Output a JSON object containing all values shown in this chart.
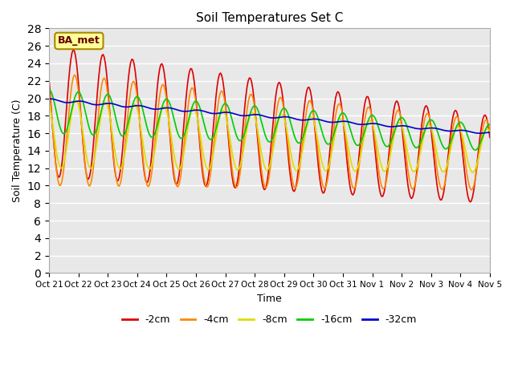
{
  "title": "Soil Temperatures Set C",
  "xlabel": "Time",
  "ylabel": "Soil Temperature (C)",
  "ylim": [
    0,
    28
  ],
  "yticks": [
    0,
    2,
    4,
    6,
    8,
    10,
    12,
    14,
    16,
    18,
    20,
    22,
    24,
    26,
    28
  ],
  "xtick_labels": [
    "Oct 21",
    "Oct 22",
    "Oct 23",
    "Oct 24",
    "Oct 25",
    "Oct 26",
    "Oct 27",
    "Oct 28",
    "Oct 29",
    "Oct 30",
    "Oct 31",
    "Nov 1",
    "Nov 2",
    "Nov 3",
    "Nov 4",
    "Nov 5"
  ],
  "xtick_positions": [
    0,
    1,
    2,
    3,
    4,
    5,
    6,
    7,
    8,
    9,
    10,
    11,
    12,
    13,
    14,
    15
  ],
  "legend_labels": [
    "-2cm",
    "-4cm",
    "-8cm",
    "-16cm",
    "-32cm"
  ],
  "legend_colors": [
    "#dd0000",
    "#ff8800",
    "#dddd00",
    "#00cc00",
    "#0000cc"
  ],
  "bg_color": "#e8e8e8",
  "grid_color": "#ffffff",
  "annotation_text": "BA_met",
  "annotation_bg": "#ffff99",
  "annotation_border": "#aa8800"
}
